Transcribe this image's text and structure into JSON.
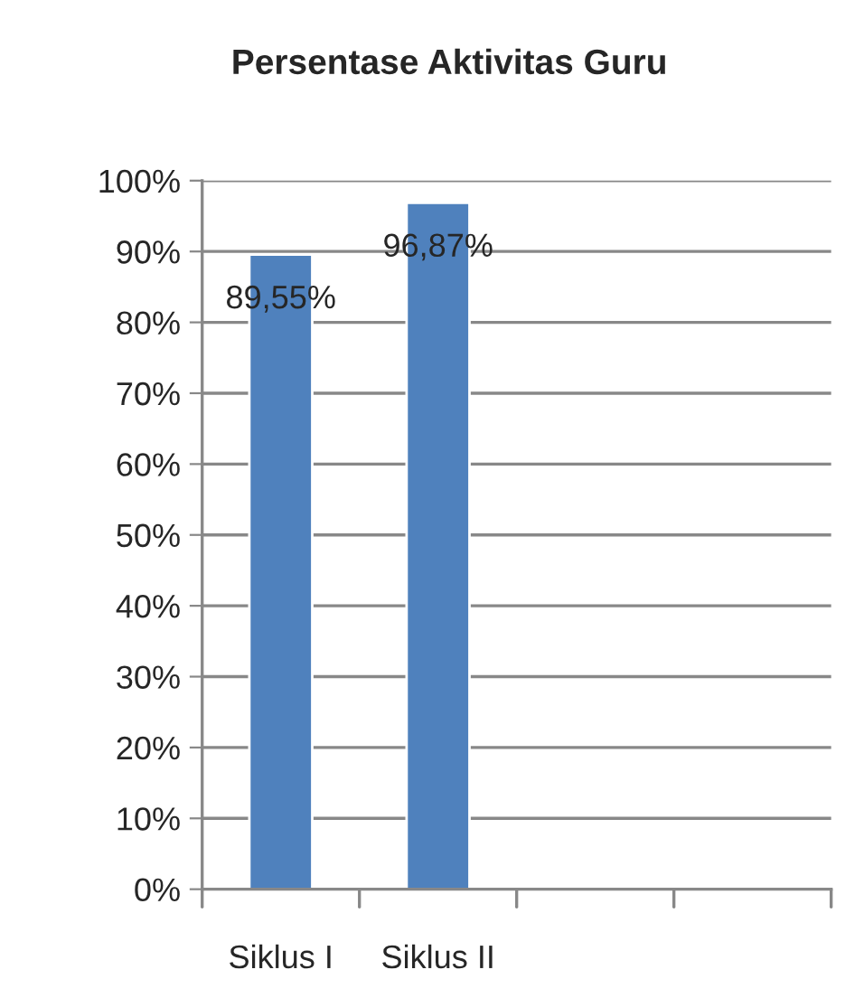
{
  "chart_data": {
    "type": "bar",
    "title": "Persentase Aktivitas Guru",
    "categories": [
      "Siklus I",
      "Siklus II",
      null,
      null
    ],
    "series": [
      {
        "color": "#4f81bd",
        "values": [
          89.55,
          96.87,
          null,
          null
        ]
      }
    ],
    "value_labels": [
      "89,55%",
      "96,87%",
      null,
      null
    ],
    "ylim": [
      0,
      100
    ],
    "yticks": [
      {
        "value": 0,
        "label": "0%"
      },
      {
        "value": 10,
        "label": "10%"
      },
      {
        "value": 20,
        "label": "20%"
      },
      {
        "value": 30,
        "label": "30%"
      },
      {
        "value": 40,
        "label": "40%"
      },
      {
        "value": 50,
        "label": "50%"
      },
      {
        "value": 60,
        "label": "60%"
      },
      {
        "value": 70,
        "label": "70%"
      },
      {
        "value": 80,
        "label": "80%"
      },
      {
        "value": 90,
        "label": "90%"
      },
      {
        "value": 100,
        "label": "100%"
      }
    ],
    "grid": "y",
    "legend": false
  }
}
